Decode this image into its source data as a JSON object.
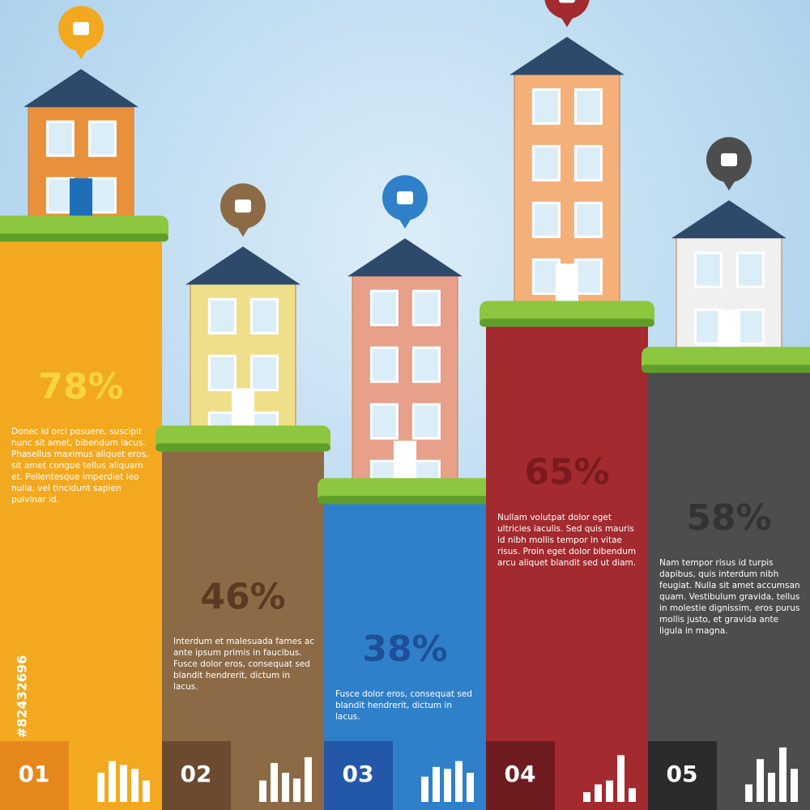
{
  "chart_data": {
    "type": "bar",
    "categories": [
      "01",
      "02",
      "03",
      "04",
      "05"
    ],
    "values": [
      78,
      46,
      38,
      65,
      58
    ],
    "value_labels": [
      "78%",
      "46%",
      "38%",
      "65%",
      "58%"
    ],
    "colors": [
      "#f2a91f",
      "#8c6a45",
      "#2f80c9",
      "#a32a2f",
      "#4d4d4d"
    ],
    "descriptions": [
      "Donec id orci posuere, suscipit nunc sit amet, bibendum lacus. Phasellus maximus aliquet eros, sit amet congue tellus aliquam et. Pellentesque imperdiet leo nulla, vel tincidunt sapien pulvinar id.",
      "Interdum et malesuada fames ac ante ipsum primis in faucibus. Fusce dolor eros, consequat sed blandit hendrerit, dictum in lacus.",
      "Fusce dolor eros, consequat sed blandit hendrerit, dictum in lacus.",
      "Nullam volutpat dolor eget ultricies iaculis. Sed quis mauris id nibh mollis tempor in vitae risus. Proin eget dolor bibendum arcu aliquet blandit sed ut diam.",
      "Nam tempor risus id turpis dapibus, quis interdum nibh feugiat. Nulla sit amet accumsan quam. Vestibulum gravida, tellus in molestie dignissim, eros purus mollis justo, et gravida ante ligula in magna."
    ],
    "stock_id": "#82432696"
  }
}
